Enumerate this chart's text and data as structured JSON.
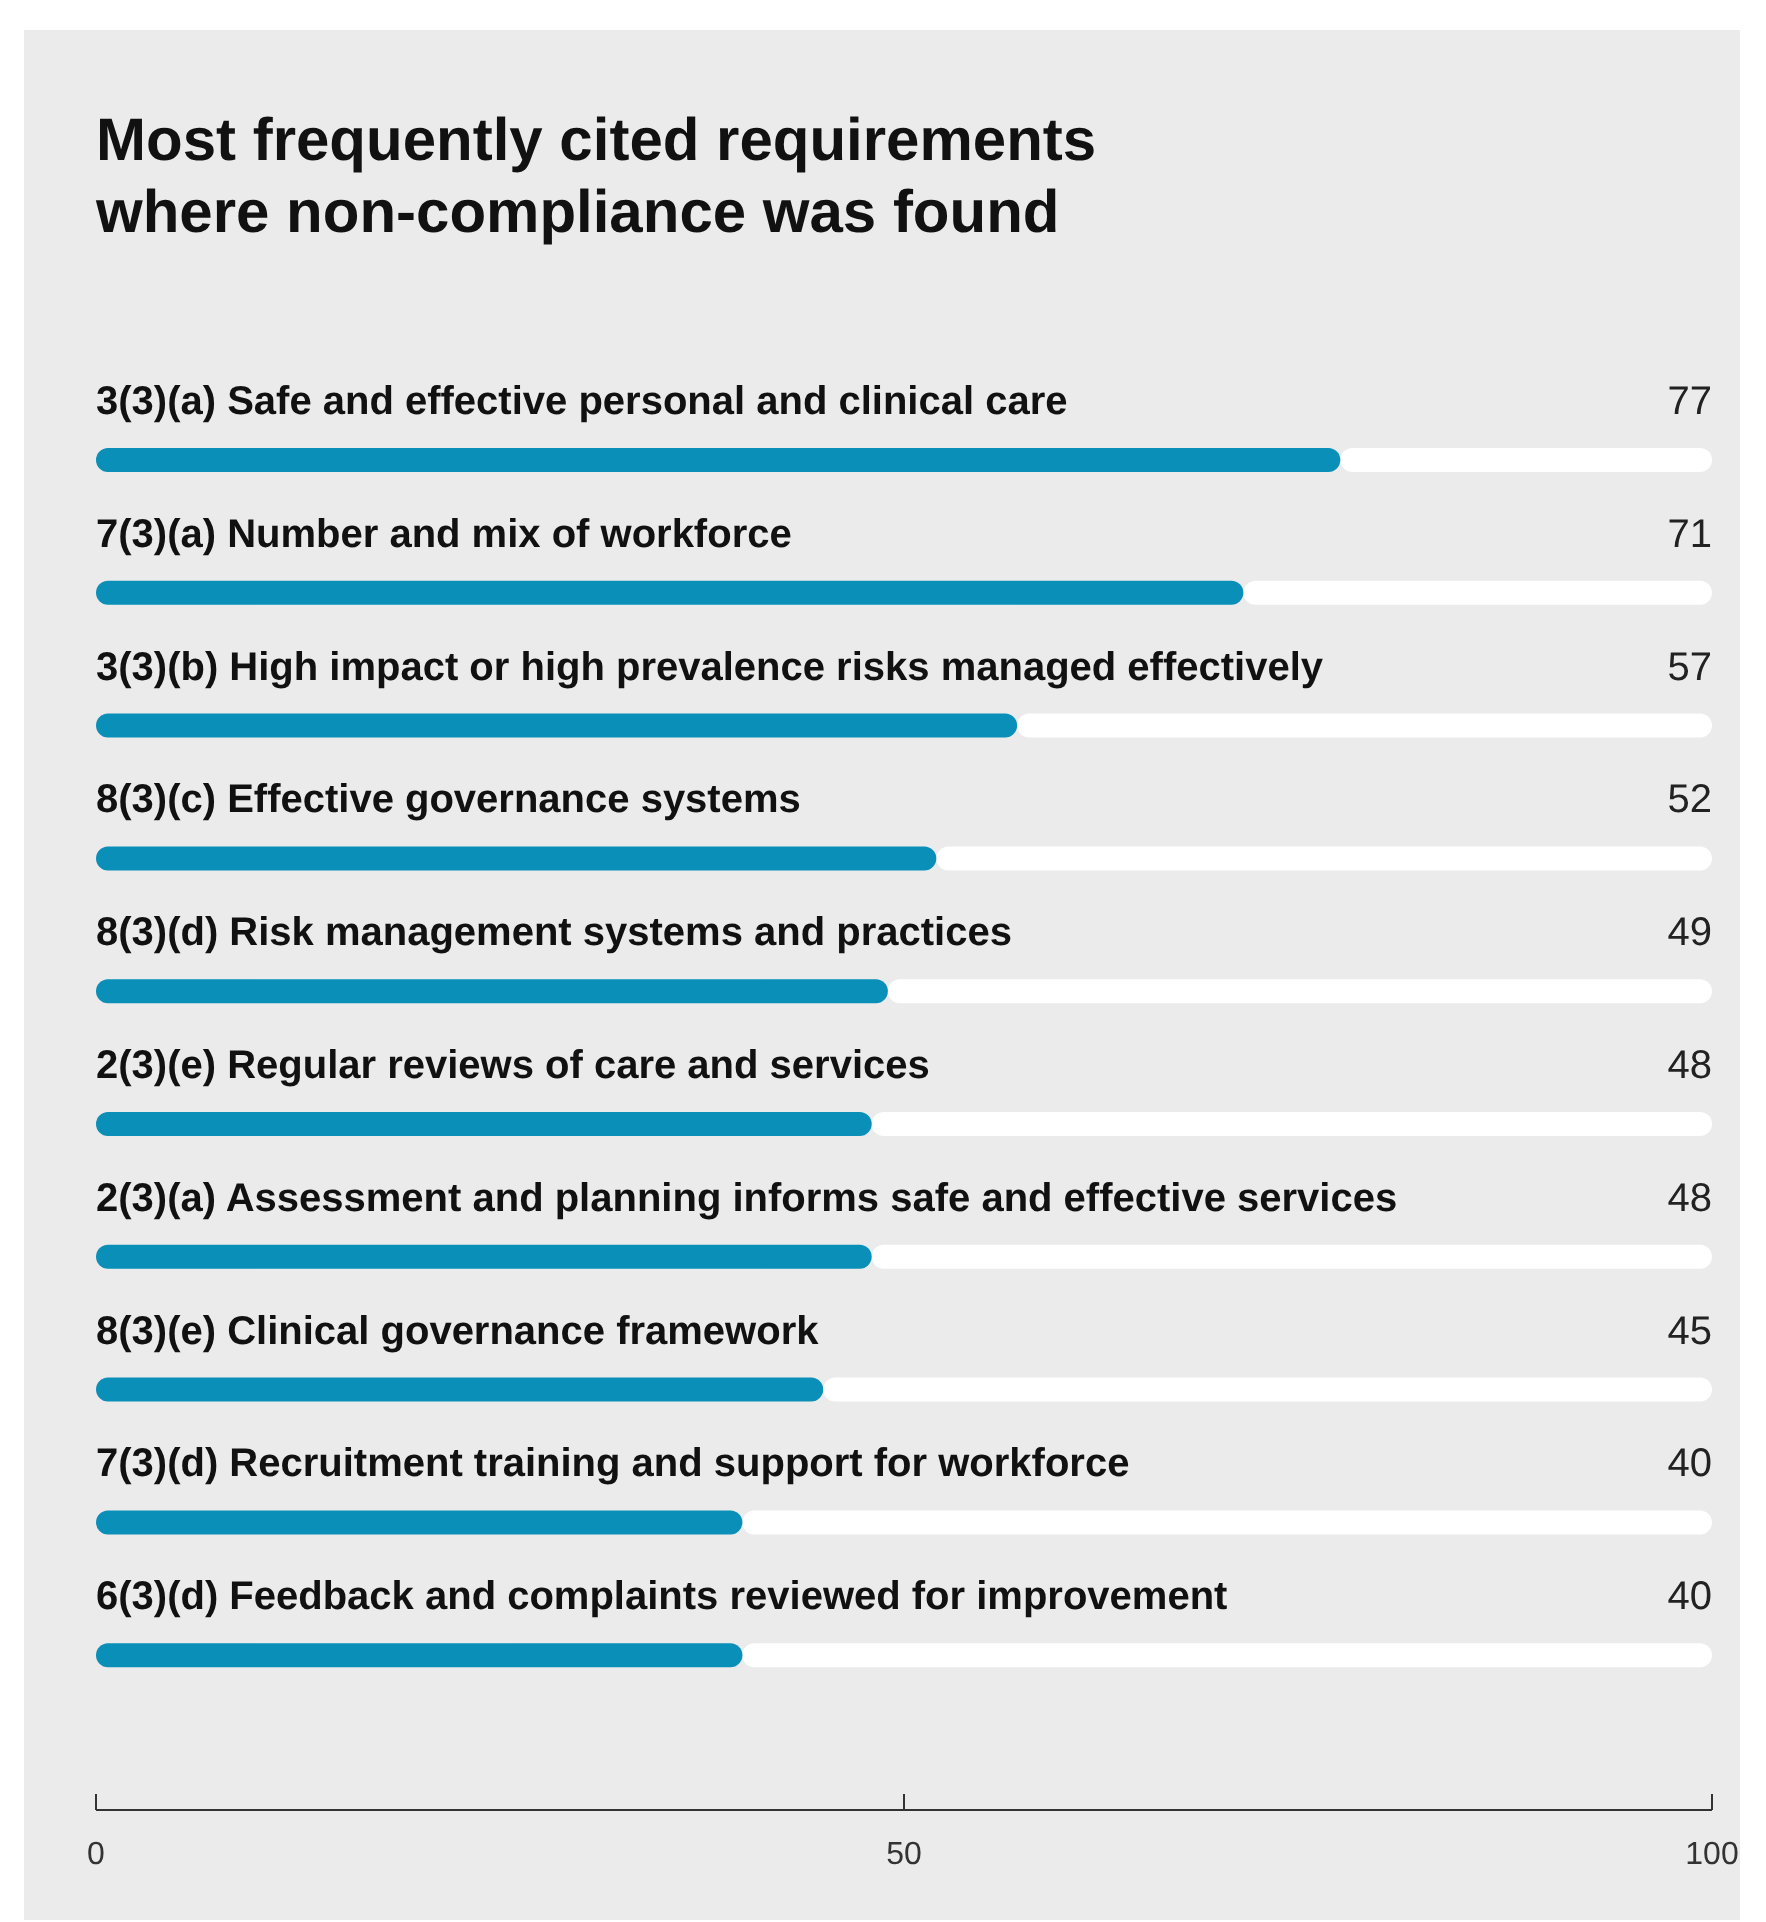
{
  "chart_data": {
    "type": "bar",
    "orientation": "horizontal",
    "title": "Most frequently cited requirements\nwhere non-compliance was found",
    "categories": [
      "3(3)(a) Safe and effective personal and clinical care",
      "7(3)(a) Number and mix of workforce",
      "3(3)(b) High impact or high prevalence risks managed effectively",
      "8(3)(c) Effective governance systems",
      "8(3)(d) Risk management systems and practices",
      "2(3)(e) Regular reviews of care and services",
      "2(3)(a) Assessment and planning informs safe and effective services",
      "8(3)(e) Clinical governance framework",
      "7(3)(d) Recruitment training and support for workforce",
      "6(3)(d) Feedback and complaints reviewed for improvement"
    ],
    "values": [
      77,
      71,
      57,
      52,
      49,
      48,
      48,
      45,
      40,
      40
    ],
    "color": "#0a8fb8",
    "xlim": [
      0,
      100
    ],
    "xticks": [
      0,
      50,
      100
    ],
    "data_labels": true
  }
}
